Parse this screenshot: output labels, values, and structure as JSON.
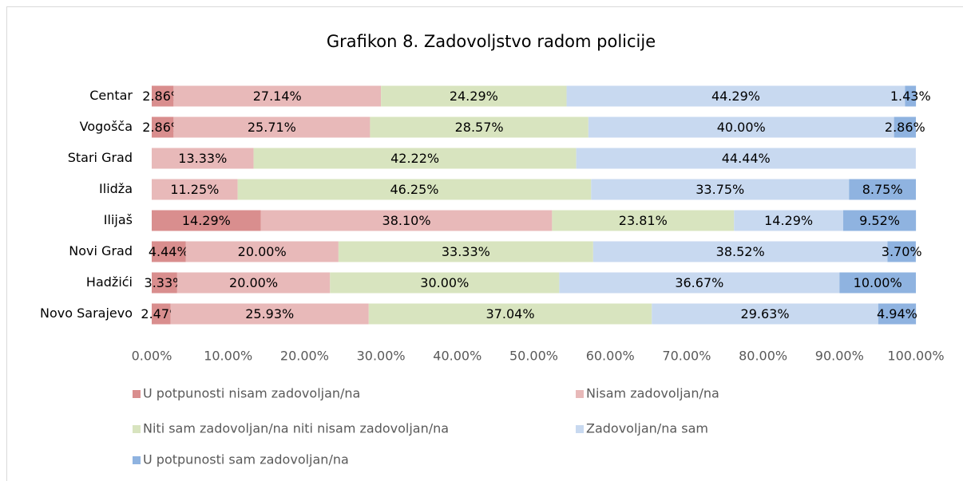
{
  "chart_data": {
    "type": "stacked-bar-horizontal",
    "title": "Grafikon 8. Zadovoljstvo radom policije",
    "categories": [
      "Centar",
      "Vogošča",
      "Stari Grad",
      "Ilidža",
      "Ilijaš",
      "Novi Grad",
      "Hadžići",
      "Novo Sarajevo"
    ],
    "series": [
      {
        "name": "U potpunosti nisam zadovoljan/na",
        "color": "#d98e8e",
        "values": [
          2.86,
          2.86,
          null,
          null,
          14.29,
          4.44,
          3.33,
          2.47
        ],
        "value_labels": [
          "2.86%",
          "2.86%",
          null,
          null,
          "14.29%",
          "4.44%",
          "3.33%",
          "2.47%"
        ]
      },
      {
        "name": "Nisam zadovoljan/na",
        "color": "#e8b9b9",
        "values": [
          27.14,
          25.71,
          13.33,
          11.25,
          38.1,
          20.0,
          20.0,
          25.93
        ],
        "value_labels": [
          "27.14%",
          "25.71%",
          "13.33%",
          "11.25%",
          "38.10%",
          "20.00%",
          "20.00%",
          "25.93%"
        ]
      },
      {
        "name": "Niti sam zadovoljan/na niti nisam zadovoljan/na",
        "color": "#d8e4bf",
        "values": [
          24.29,
          28.57,
          42.22,
          46.25,
          23.81,
          33.33,
          30.0,
          37.04
        ],
        "value_labels": [
          "24.29%",
          "28.57%",
          "42.22%",
          "46.25%",
          "23.81%",
          "33.33%",
          "30.00%",
          "37.04%"
        ]
      },
      {
        "name": "Zadovoljan/na sam",
        "color": "#c8d9f0",
        "values": [
          44.29,
          40.0,
          44.44,
          33.75,
          14.29,
          38.52,
          36.67,
          29.63
        ],
        "value_labels": [
          "44.29%",
          "40.00%",
          "44.44%",
          "33.75%",
          "14.29%",
          "38.52%",
          "36.67%",
          "29.63%"
        ]
      },
      {
        "name": "U potpunosti sam zadovoljan/na",
        "color": "#8fb3e0",
        "values": [
          1.43,
          2.86,
          null,
          8.75,
          9.52,
          3.7,
          10.0,
          4.94
        ],
        "value_labels": [
          "1.43%",
          "2.86%",
          null,
          "8.75%",
          "9.52%",
          "3.70%",
          "10.00%",
          "4.94%"
        ]
      }
    ],
    "xlim": [
      0,
      100
    ],
    "xticks": [
      {
        "value": 0,
        "label": "0.00%"
      },
      {
        "value": 10,
        "label": "10.00%"
      },
      {
        "value": 20,
        "label": "20.00%"
      },
      {
        "value": 30,
        "label": "30.00%"
      },
      {
        "value": 40,
        "label": "40.00%"
      },
      {
        "value": 50,
        "label": "50.00%"
      },
      {
        "value": 60,
        "label": "60.00%"
      },
      {
        "value": 70,
        "label": "70.00%"
      },
      {
        "value": 80,
        "label": "80.00%"
      },
      {
        "value": 90,
        "label": "90.00%"
      },
      {
        "value": 100,
        "label": "100.00%"
      }
    ],
    "legend": "bottom"
  }
}
